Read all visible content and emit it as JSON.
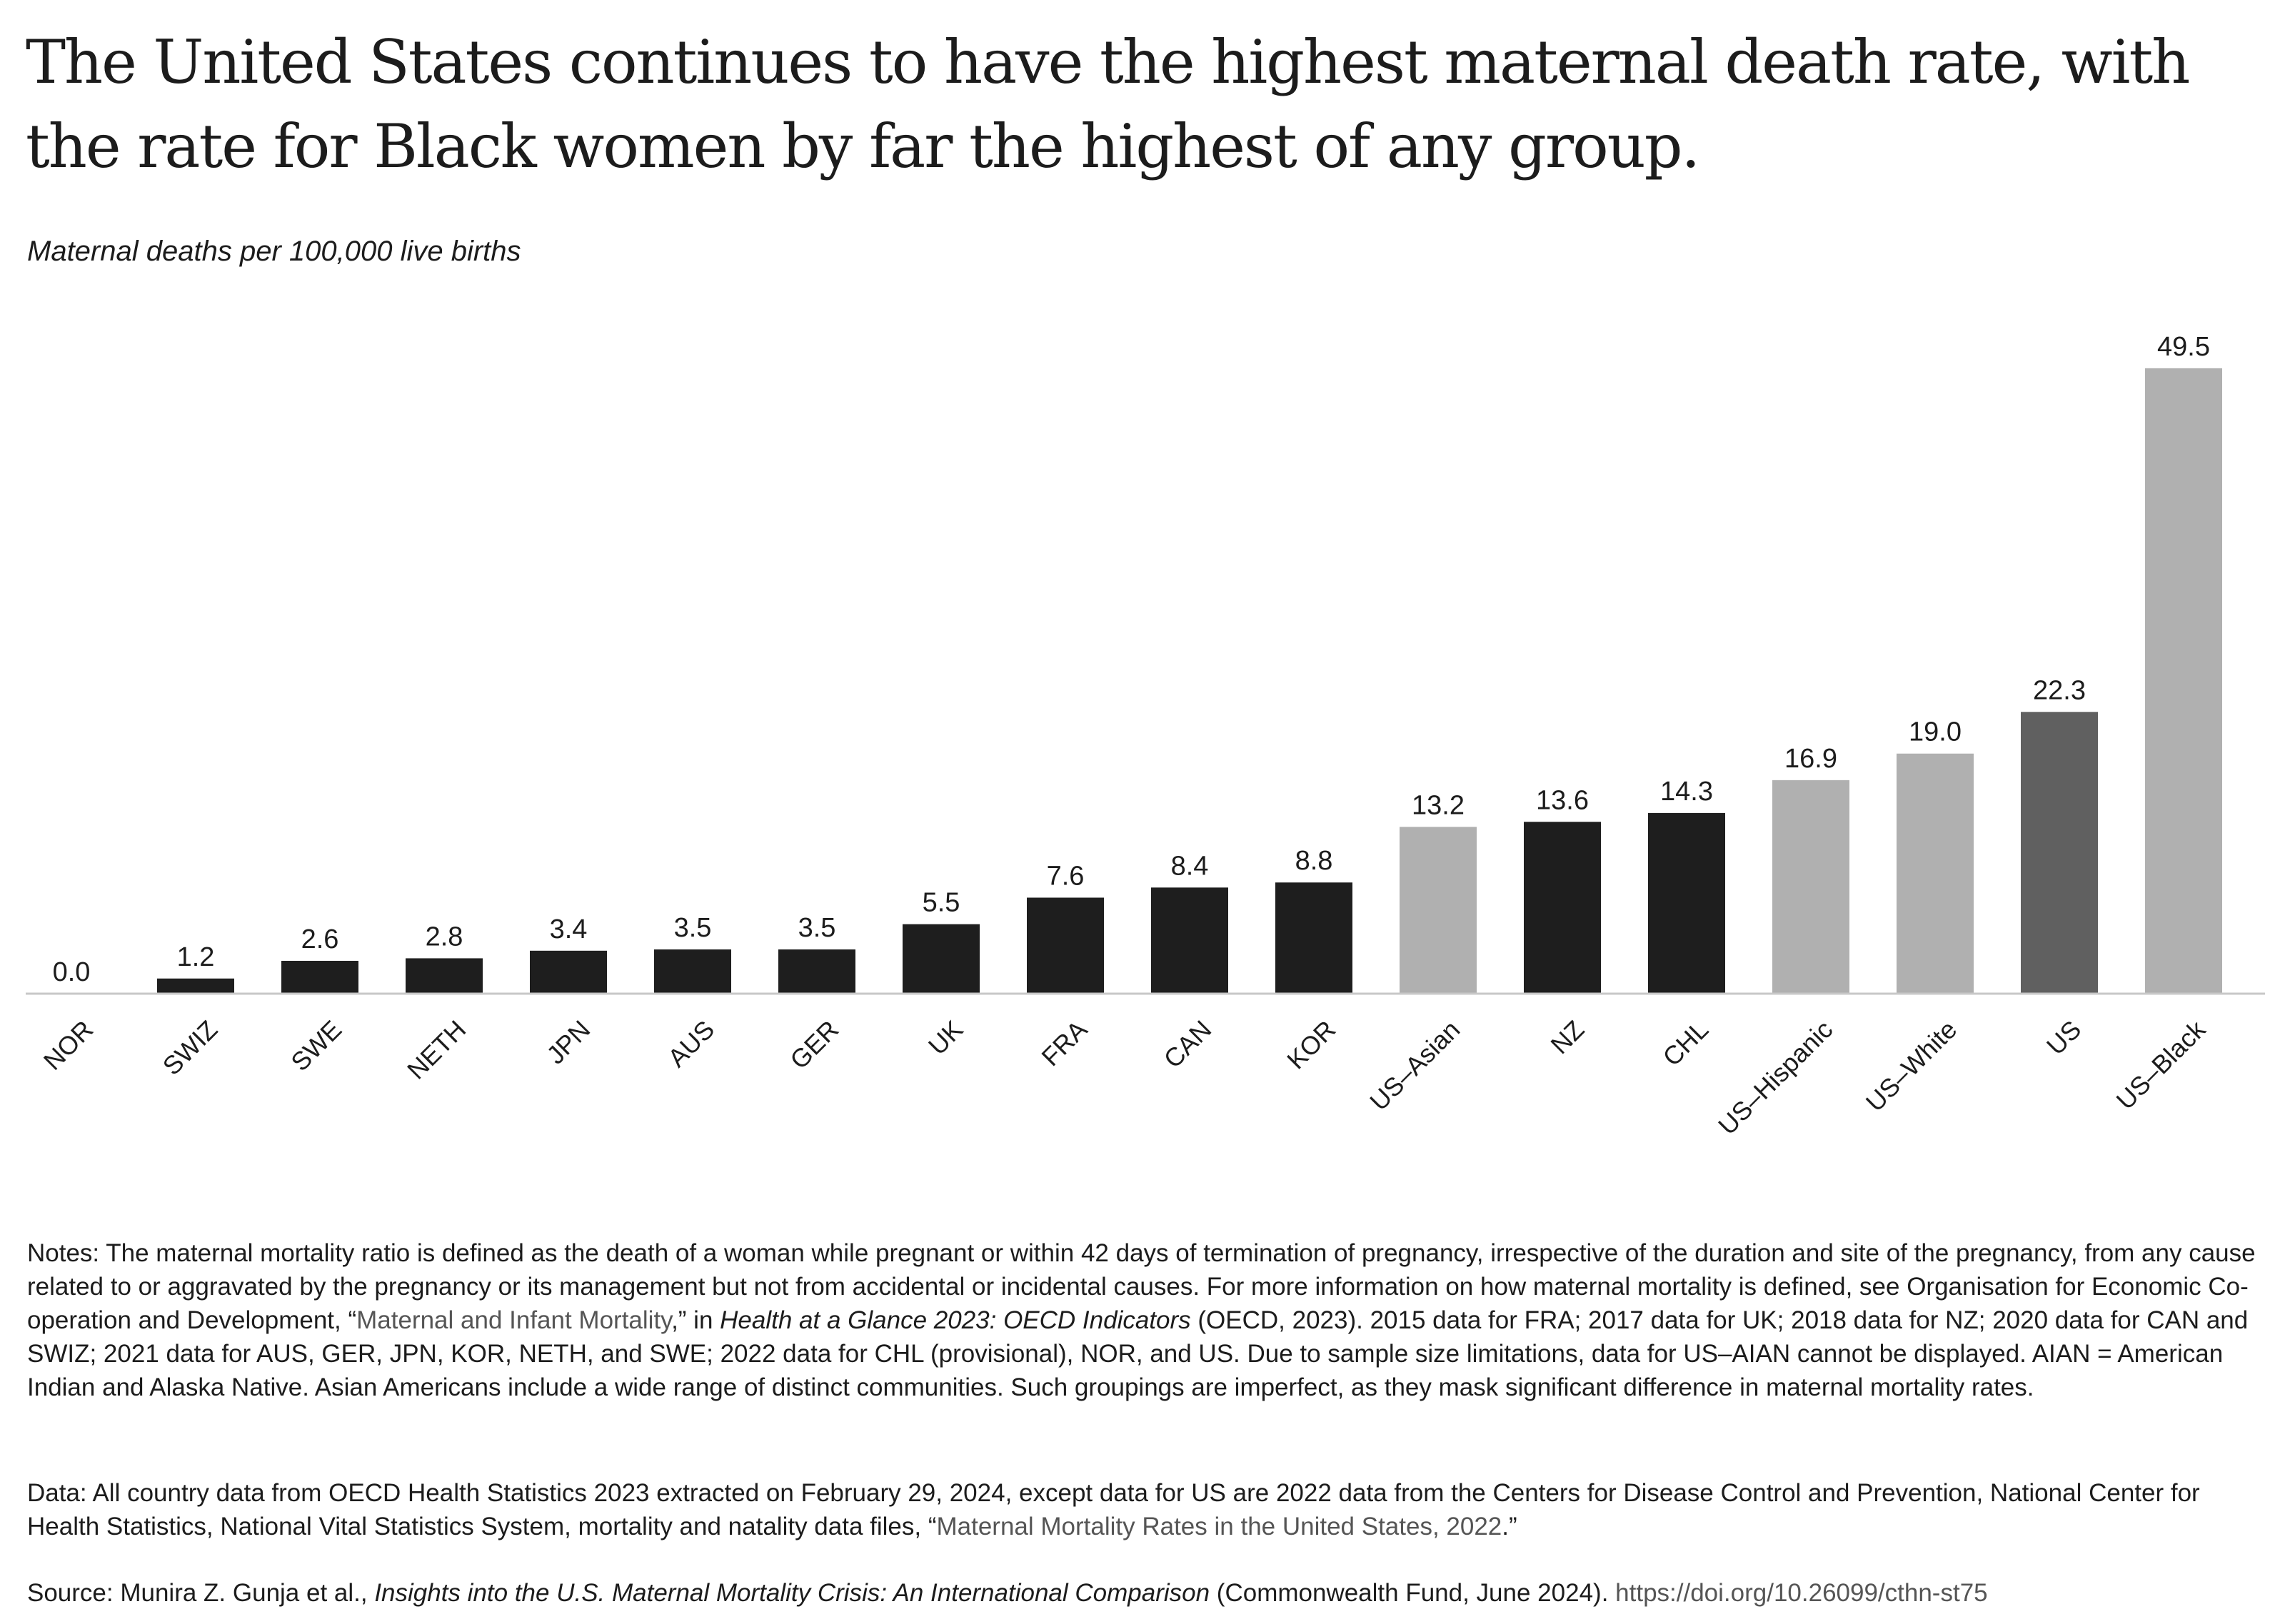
{
  "header": {
    "title": "The United States continues to have the highest maternal death rate, with the rate for Black women by far the highest of any group.",
    "subtitle": "Maternal deaths per 100,000 live births"
  },
  "colors": {
    "country": "#1e1e1e",
    "us_subgroup": "#b0b0b0",
    "us_total": "#606060",
    "axis": "#c8c8c8",
    "text": "#1c1c1c",
    "link": "#555555"
  },
  "chart_data": {
    "type": "bar",
    "ylabel": "Maternal deaths per 100,000 live births",
    "ylim": [
      0,
      50
    ],
    "grid": false,
    "legend": "none",
    "categories": [
      "NOR",
      "SWIZ",
      "SWE",
      "NETH",
      "JPN",
      "AUS",
      "GER",
      "UK",
      "FRA",
      "CAN",
      "KOR",
      "US–Asian",
      "NZ",
      "CHL",
      "US–Hispanic",
      "US–White",
      "US",
      "US–Black"
    ],
    "values": [
      0.0,
      1.2,
      2.6,
      2.8,
      3.4,
      3.5,
      3.5,
      5.5,
      7.6,
      8.4,
      8.8,
      13.2,
      13.6,
      14.3,
      16.9,
      19.0,
      22.3,
      49.5
    ],
    "value_labels": [
      "0.0",
      "1.2",
      "2.6",
      "2.8",
      "3.4",
      "3.5",
      "3.5",
      "5.5",
      "7.6",
      "8.4",
      "8.8",
      "13.2",
      "13.6",
      "14.3",
      "16.9",
      "19.0",
      "22.3",
      "49.5"
    ],
    "groups": [
      "country",
      "country",
      "country",
      "country",
      "country",
      "country",
      "country",
      "country",
      "country",
      "country",
      "country",
      "us_subgroup",
      "country",
      "country",
      "us_subgroup",
      "us_subgroup",
      "us_total",
      "us_subgroup"
    ]
  },
  "notes": {
    "p1_before": "Notes: The maternal mortality ratio is defined as the death of a woman while pregnant or within 42 days of termination of pregnancy, irrespective of the duration and site of the pregnancy, from any cause related to or aggravated by the pregnancy or its management but not from accidental or incidental causes. For more information on how maternal mortality is defined, see Organisation for Economic Co-operation and Development, “",
    "p1_link": "Maternal and Infant Mortality",
    "p1_mid": ",” in ",
    "p1_italic": "Health at a Glance 2023: OECD Indicators",
    "p1_after": " (OECD, 2023). 2015 data for FRA; 2017 data for UK; 2018 data for NZ; 2020 data for CAN and SWIZ; 2021 data for AUS, GER, JPN, KOR, NETH, and SWE; 2022 data for CHL (provisional), NOR, and US. Due to sample size limitations, data for US–AIAN cannot be displayed. AIAN = American Indian and Alaska Native. Asian Americans include a wide range of distinct communities. Such groupings are imperfect, as they mask significant difference in maternal mortality rates.",
    "p2_before": "Data: All country data from OECD Health Statistics 2023 extracted on February 29, 2024, except data for US are 2022 data from the Centers for Disease Control and Prevention, National Center for Health Statistics, National Vital Statistics System, mortality and natality data files, “",
    "p2_link": "Maternal Mortality Rates in the United States, 2022",
    "p2_after": ".”",
    "p3_before": "Source: Munira Z. Gunja et al., ",
    "p3_italic": "Insights into the U.S. Maternal Mortality Crisis: An International Comparison",
    "p3_mid": " (Commonwealth Fund, June 2024). ",
    "p3_link": "https://doi.org/10.26099/cthn-st75"
  }
}
